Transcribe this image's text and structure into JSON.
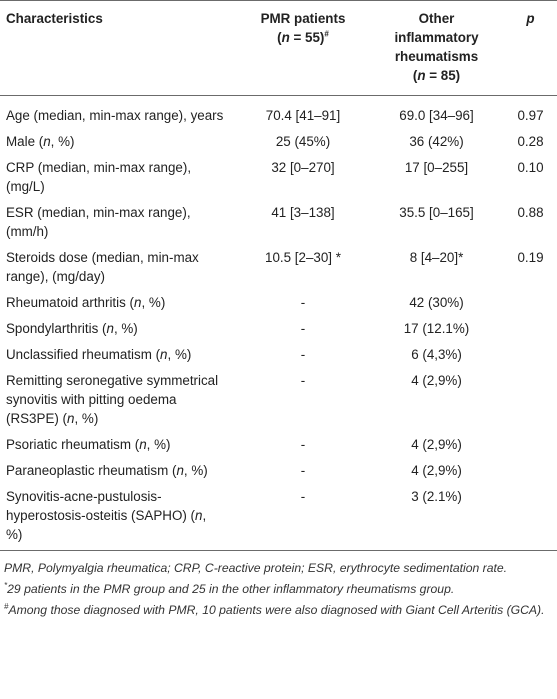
{
  "header": {
    "col1": "Characteristics",
    "col2_line1": "PMR patients",
    "col2_n": "(n = 55)",
    "col2_mark": "#",
    "col3_line1": "Other",
    "col3_line2": "inflammatory",
    "col3_line3": "rheumatisms",
    "col3_n": "(n = 85)",
    "col4": "p"
  },
  "rows": [
    {
      "label": "Age (median, min-max range), years",
      "pmr": "70.4 [41–91]",
      "other": "69.0 [34–96]",
      "p": "0.97"
    },
    {
      "label_pre": "Male (",
      "label_n": "n",
      "label_post": ", %)",
      "pmr": "25 (45%)",
      "other": "36 (42%)",
      "p": "0.28"
    },
    {
      "label_l1": "CRP (median, min-max range),",
      "label_l2": "(mg/L)",
      "pmr": "32 [0–270]",
      "other": "17 [0–255]",
      "p": "0.10"
    },
    {
      "label_l1": "ESR (median, min-max range),",
      "label_l2": "(mm/h)",
      "pmr": "41 [3–138]",
      "other": "35.5 [0–165]",
      "p": "0.88"
    },
    {
      "label_l1": "Steroids dose (median, min-max",
      "label_l2": "range), (mg/day)",
      "pmr": "10.5 [2–30] *",
      "other": "8 [4–20]*",
      "p": "0.19"
    },
    {
      "label_pre": "Rheumatoid arthritis (",
      "label_n": "n",
      "label_post": ", %)",
      "pmr": "-",
      "other": "42 (30%)",
      "p": ""
    },
    {
      "label_pre": "Spondylarthritis (",
      "label_n": "n",
      "label_post": ", %)",
      "pmr": "-",
      "other": "17 (12.1%)",
      "p": ""
    },
    {
      "label_pre": "Unclassified rheumatism (",
      "label_n": "n",
      "label_post": ", %)",
      "pmr": "-",
      "other": "6 (4,3%)",
      "p": ""
    },
    {
      "label_l1": "Remitting seronegative symmetrical",
      "label_l2": "synovitis with pitting oedema",
      "label_l3_pre": "(RS3PE) (",
      "label_l3_n": "n",
      "label_l3_post": ", %)",
      "pmr": "-",
      "other": "4 (2,9%)",
      "p": ""
    },
    {
      "label_pre": "Psoriatic rheumatism (",
      "label_n": "n",
      "label_post": ", %)",
      "pmr": "-",
      "other": "4 (2,9%)",
      "p": ""
    },
    {
      "label_pre": "Paraneoplastic rheumatism (",
      "label_n": "n",
      "label_post": ", %)",
      "pmr": "-",
      "other": "4 (2,9%)",
      "p": ""
    },
    {
      "label_l1": "Synovitis-acne-pustulosis-",
      "label_l2_pre": "hyperostosis-osteitis (SAPHO) (",
      "label_l2_n": "n",
      "label_l2_post": ",",
      "label_l3": "%)",
      "pmr": "-",
      "other": "3 (2.1%)",
      "p": ""
    }
  ],
  "notes": {
    "abbrev": "PMR, Polymyalgia rheumatica; CRP, C-reactive protein; ESR, erythrocyte sedimentation rate.",
    "star_mark": "*",
    "star": "29 patients in the PMR group and 25 in the other inflammatory rheumatisms group.",
    "hash_mark": "#",
    "hash": "Among those diagnosed with PMR, 10 patients were also diagnosed with Giant Cell Arteritis (GCA)."
  }
}
